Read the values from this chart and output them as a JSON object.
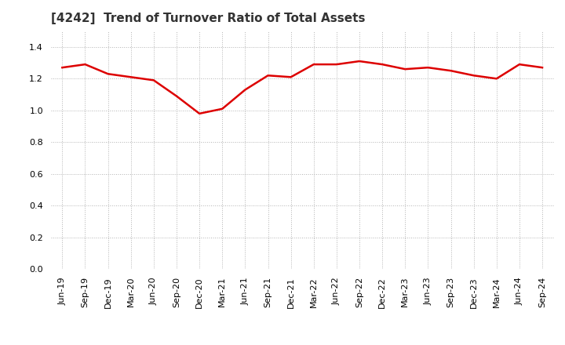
{
  "title": "[4242]  Trend of Turnover Ratio of Total Assets",
  "labels": [
    "Jun-19",
    "Sep-19",
    "Dec-19",
    "Mar-20",
    "Jun-20",
    "Sep-20",
    "Dec-20",
    "Mar-21",
    "Jun-21",
    "Sep-21",
    "Dec-21",
    "Mar-22",
    "Jun-22",
    "Sep-22",
    "Dec-22",
    "Mar-23",
    "Jun-23",
    "Sep-23",
    "Dec-23",
    "Mar-24",
    "Jun-24",
    "Sep-24"
  ],
  "values": [
    1.27,
    1.29,
    1.23,
    1.21,
    1.19,
    1.09,
    0.98,
    1.01,
    1.13,
    1.22,
    1.21,
    1.29,
    1.29,
    1.31,
    1.29,
    1.26,
    1.27,
    1.25,
    1.22,
    1.2,
    1.29,
    1.27
  ],
  "line_color": "#dd0000",
  "line_width": 1.8,
  "ylim": [
    0.0,
    1.5
  ],
  "yticks": [
    0.0,
    0.2,
    0.4,
    0.6,
    0.8,
    1.0,
    1.2,
    1.4
  ],
  "title_fontsize": 11,
  "tick_fontsize": 8,
  "background_color": "#ffffff",
  "plot_bg_color": "#ffffff",
  "grid_color": "#aaaaaa",
  "grid_style": ":"
}
